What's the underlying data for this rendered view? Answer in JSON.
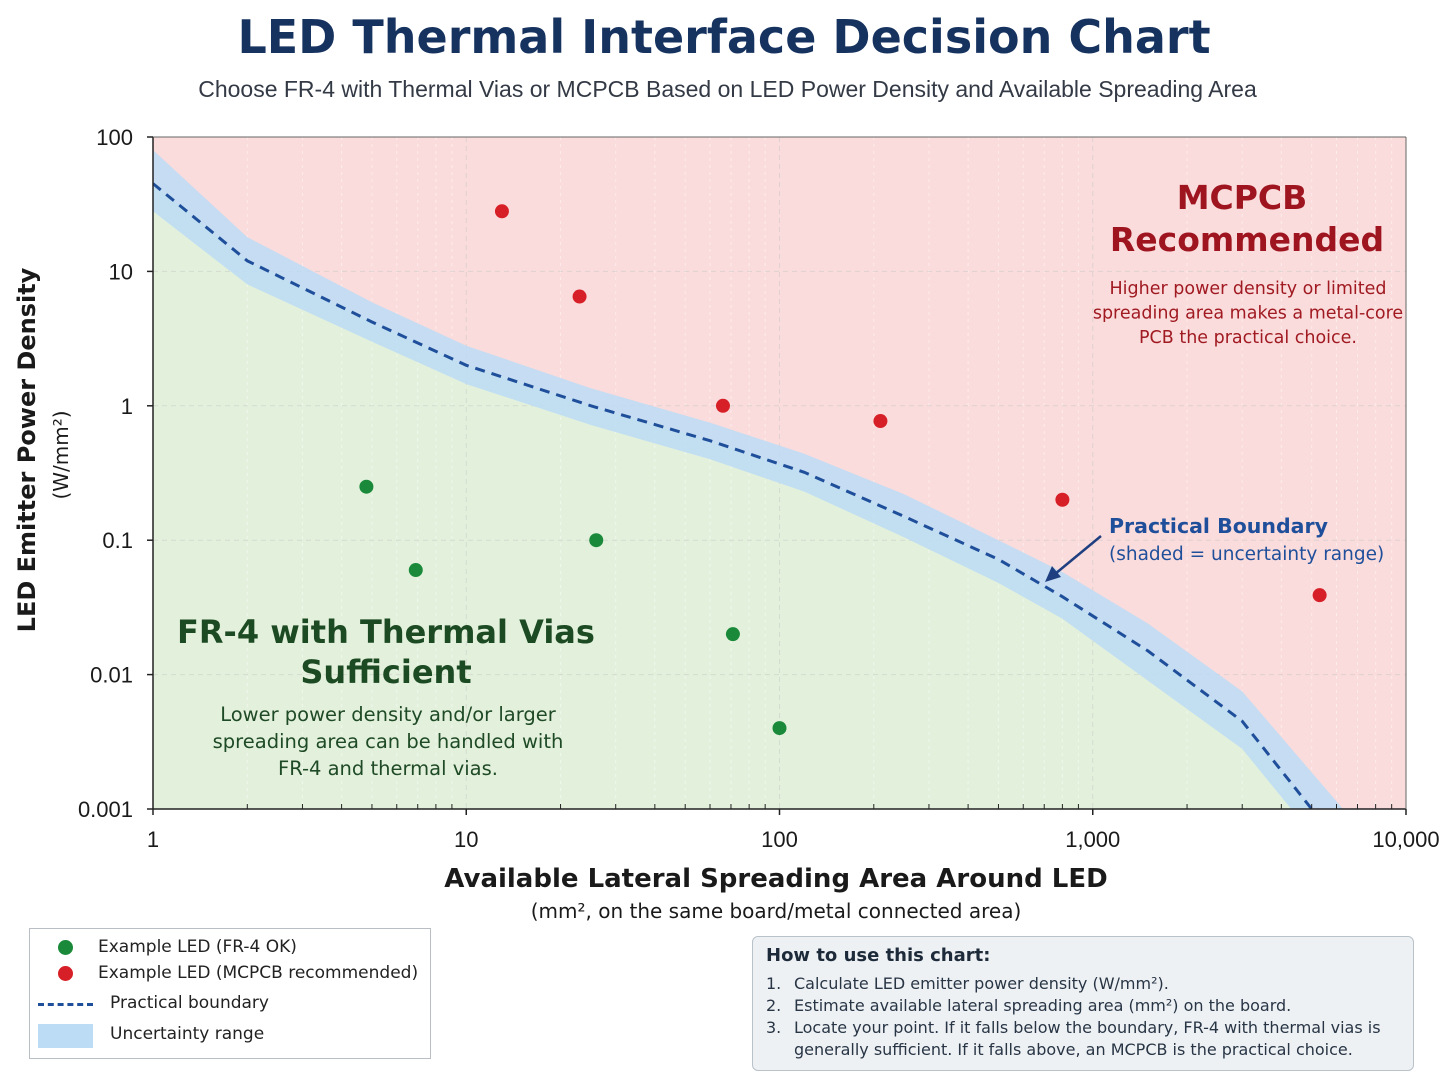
{
  "title": "LED Thermal Interface Decision Chart",
  "subtitle": "Choose FR-4 with Thermal Vias or MCPCB Based on LED Power Density and Available Spreading Area",
  "colors": {
    "fr4_region": "#e3f1dc",
    "mcpcb_region": "#fbdcdc",
    "boundary": "#1f4f9a",
    "uncertainty": "#bcdcf6",
    "green_point": "#1a8a3a",
    "red_point": "#d61f26",
    "title": "#16325f"
  },
  "chart_data": {
    "type": "scatter",
    "title": "LED Thermal Interface Decision Chart",
    "subtitle": "Choose FR-4 with Thermal Vias or MCPCB Based on LED Power Density and Available Spreading Area",
    "xlabel": "Available Lateral Spreading Area Around LED",
    "xlabel_sub": "(mm², on the same board/metal connected area)",
    "ylabel": "LED Emitter Power Density",
    "ylabel_sub": "(W/mm²)",
    "x_scale": "log",
    "y_scale": "log",
    "xlim": [
      1,
      10000
    ],
    "ylim": [
      0.001,
      100
    ],
    "x_ticks": [
      {
        "value": 1,
        "label": "1"
      },
      {
        "value": 10,
        "label": "10"
      },
      {
        "value": 100,
        "label": "100"
      },
      {
        "value": 1000,
        "label": "1,000"
      },
      {
        "value": 10000,
        "label": "10,000"
      }
    ],
    "y_ticks": [
      {
        "value": 100,
        "label": "100"
      },
      {
        "value": 10,
        "label": "10"
      },
      {
        "value": 1,
        "label": "1"
      },
      {
        "value": 0.1,
        "label": "0.1"
      },
      {
        "value": 0.01,
        "label": "0.01"
      },
      {
        "value": 0.001,
        "label": "0.001"
      }
    ],
    "grid": true,
    "legend_position": "bottom-left",
    "series": [
      {
        "name": "Example LED (FR-4 OK)",
        "color": "#1a8a3a",
        "points": [
          [
            4.8,
            0.25
          ],
          [
            6.9,
            0.06
          ],
          [
            26,
            0.1
          ],
          [
            71,
            0.02
          ],
          [
            100,
            0.004
          ]
        ]
      },
      {
        "name": "Example LED (MCPCB recommended)",
        "color": "#d61f26",
        "points": [
          [
            13,
            28
          ],
          [
            23,
            6.5
          ],
          [
            66,
            1.0
          ],
          [
            210,
            0.77
          ],
          [
            800,
            0.2
          ],
          [
            5300,
            0.039
          ]
        ]
      },
      {
        "name": "Practical boundary",
        "style": "dashed",
        "color": "#1f4f9a",
        "points": [
          [
            1,
            45
          ],
          [
            2,
            12
          ],
          [
            5,
            4.2
          ],
          [
            10,
            2.0
          ],
          [
            25,
            1.0
          ],
          [
            60,
            0.55
          ],
          [
            120,
            0.32
          ],
          [
            250,
            0.15
          ],
          [
            500,
            0.072
          ],
          [
            800,
            0.038
          ],
          [
            1500,
            0.015
          ],
          [
            3000,
            0.0045
          ],
          [
            5000,
            0.001
          ]
        ]
      },
      {
        "name": "Uncertainty range",
        "color": "#bcdcf6",
        "upper": [
          [
            1,
            80
          ],
          [
            2,
            18
          ],
          [
            5,
            5.9
          ],
          [
            10,
            2.8
          ],
          [
            25,
            1.35
          ],
          [
            60,
            0.75
          ],
          [
            120,
            0.44
          ],
          [
            250,
            0.22
          ],
          [
            500,
            0.1
          ],
          [
            800,
            0.058
          ],
          [
            1500,
            0.024
          ],
          [
            3000,
            0.0075
          ],
          [
            6300,
            0.001
          ]
        ],
        "lower": [
          [
            1,
            28
          ],
          [
            2,
            8
          ],
          [
            5,
            3.0
          ],
          [
            10,
            1.45
          ],
          [
            25,
            0.72
          ],
          [
            60,
            0.4
          ],
          [
            120,
            0.23
          ],
          [
            250,
            0.105
          ],
          [
            500,
            0.048
          ],
          [
            800,
            0.026
          ],
          [
            1500,
            0.009
          ],
          [
            3000,
            0.0028
          ],
          [
            4300,
            0.001
          ]
        ]
      }
    ],
    "annotations": {
      "mcpcb_title": "MCPCB Recommended",
      "mcpcb_text": [
        "Higher power density or limited",
        "spreading area makes a metal-core",
        "PCB the practical choice."
      ],
      "fr4_title": "FR-4 with Thermal Vias Sufficient",
      "fr4_text": [
        "Lower power density and/or larger",
        "spreading area can be handled with",
        "FR-4 and thermal vias."
      ],
      "boundary_title": "Practical Boundary",
      "boundary_text": "(shaded = uncertainty range)"
    }
  },
  "legend": {
    "items": [
      {
        "label": "Example LED (FR-4 OK)",
        "kind": "dot",
        "color": "#1a8a3a"
      },
      {
        "label": "Example LED (MCPCB recommended)",
        "kind": "dot",
        "color": "#d61f26"
      },
      {
        "label": "Practical boundary",
        "kind": "dash",
        "color": "#1f4f9a"
      },
      {
        "label": "Uncertainty range",
        "kind": "band",
        "color": "#bcdcf6"
      }
    ]
  },
  "howto": {
    "title": "How to use this chart:",
    "steps": [
      {
        "num": "1.",
        "text": "Calculate LED emitter power density (W/mm²)."
      },
      {
        "num": "2.",
        "text": "Estimate available lateral spreading area (mm²) on the board."
      },
      {
        "num": "3.",
        "text": "Locate your point. If it falls below the boundary, FR-4 with thermal vias is generally sufficient. If it falls above, an MCPCB is the practical choice."
      }
    ]
  }
}
